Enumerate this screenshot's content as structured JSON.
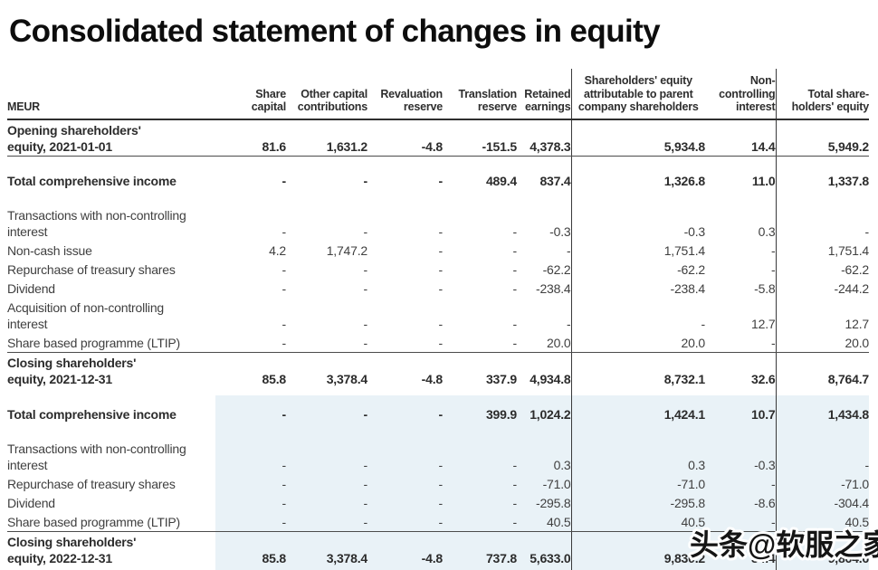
{
  "page": {
    "title": "Consolidated statement of changes in equity"
  },
  "watermark": {
    "text": "头条@软服之家"
  },
  "colors": {
    "highlight_band": "#e9f2f7",
    "rule": "#3a3a3b",
    "text": "#3f3f3f"
  },
  "table": {
    "columns": [
      {
        "label": "MEUR"
      },
      {
        "label": "Share\ncapital"
      },
      {
        "label": "Other capital\ncontributions"
      },
      {
        "label": "Revaluation\nreserve"
      },
      {
        "label": "Translation\nreserve"
      },
      {
        "label": "Retained\nearnings"
      },
      {
        "label": "Shareholders' equity\nattributable to parent\ncompany shareholders"
      },
      {
        "label": "Non-\ncontrolling\ninterest"
      },
      {
        "label": "Total share-\nholders' equity"
      }
    ],
    "rows": [
      {
        "label": "Opening shareholders'\nequity, 2021-01-01",
        "bold": true,
        "rule_below": true,
        "values": [
          "81.6",
          "1,631.2",
          "-4.8",
          "-151.5",
          "4,378.3",
          "5,934.8",
          "14.4",
          "5,949.2"
        ]
      },
      {
        "type": "spacer",
        "height": 16
      },
      {
        "label": "Total comprehensive income",
        "bold": true,
        "values": [
          "-",
          "-",
          "-",
          "489.4",
          "837.4",
          "1,326.8",
          "11.0",
          "1,337.8"
        ]
      },
      {
        "type": "spacer",
        "height": 17
      },
      {
        "label": "Transactions with non-controlling\ninterest",
        "values": [
          "-",
          "-",
          "-",
          "-",
          "-0.3",
          "-0.3",
          "0.3",
          "-"
        ]
      },
      {
        "label": "Non-cash issue",
        "values": [
          "4.2",
          "1,747.2",
          "-",
          "-",
          "-",
          "1,751.4",
          "-",
          "1,751.4"
        ]
      },
      {
        "label": "Repurchase of treasury shares",
        "values": [
          "-",
          "-",
          "-",
          "-",
          "-62.2",
          "-62.2",
          "-",
          "-62.2"
        ]
      },
      {
        "label": "Dividend",
        "values": [
          "-",
          "-",
          "-",
          "-",
          "-238.4",
          "-238.4",
          "-5.8",
          "-244.2"
        ]
      },
      {
        "label": "Acquisition of non-controlling\ninterest",
        "values": [
          "-",
          "-",
          "-",
          "-",
          "-",
          "-",
          "12.7",
          "12.7"
        ]
      },
      {
        "label": "Share based programme (LTIP)",
        "rule_below": true,
        "values": [
          "-",
          "-",
          "-",
          "-",
          "20.0",
          "20.0",
          "-",
          "20.0"
        ]
      },
      {
        "label": "Closing shareholders'\nequity, 2021-12-31",
        "bold": true,
        "values": [
          "85.8",
          "3,378.4",
          "-4.8",
          "337.9",
          "4,934.8",
          "8,732.1",
          "32.6",
          "8,764.7"
        ]
      },
      {
        "type": "spacer",
        "height": 8
      },
      {
        "type": "spacer",
        "height": 10,
        "blue": true
      },
      {
        "label": "Total comprehensive income",
        "bold": true,
        "blue": true,
        "values": [
          "-",
          "-",
          "-",
          "399.9",
          "1,024.2",
          "1,424.1",
          "10.7",
          "1,434.8"
        ]
      },
      {
        "type": "spacer",
        "height": 17,
        "blue": true
      },
      {
        "label": "Transactions with non-controlling\ninterest",
        "blue": true,
        "values": [
          "-",
          "-",
          "-",
          "-",
          "0.3",
          "0.3",
          "-0.3",
          "-"
        ]
      },
      {
        "label": "Repurchase of treasury shares",
        "blue": true,
        "values": [
          "-",
          "-",
          "-",
          "-",
          "-71.0",
          "-71.0",
          "-",
          "-71.0"
        ]
      },
      {
        "label": "Dividend",
        "blue": true,
        "values": [
          "-",
          "-",
          "-",
          "-",
          "-295.8",
          "-295.8",
          "-8.6",
          "-304.4"
        ]
      },
      {
        "label": "Share based programme (LTIP)",
        "blue": true,
        "rule_below": true,
        "values": [
          "-",
          "-",
          "-",
          "-",
          "40.5",
          "40.5",
          "-",
          "40.5"
        ]
      },
      {
        "label": "Closing shareholders'\nequity, 2022-12-31",
        "bold": true,
        "blue": true,
        "last": true,
        "values": [
          "85.8",
          "3,378.4",
          "-4.8",
          "737.8",
          "5,633.0",
          "9,830.2",
          "34.4",
          "9,864.6"
        ]
      }
    ]
  }
}
